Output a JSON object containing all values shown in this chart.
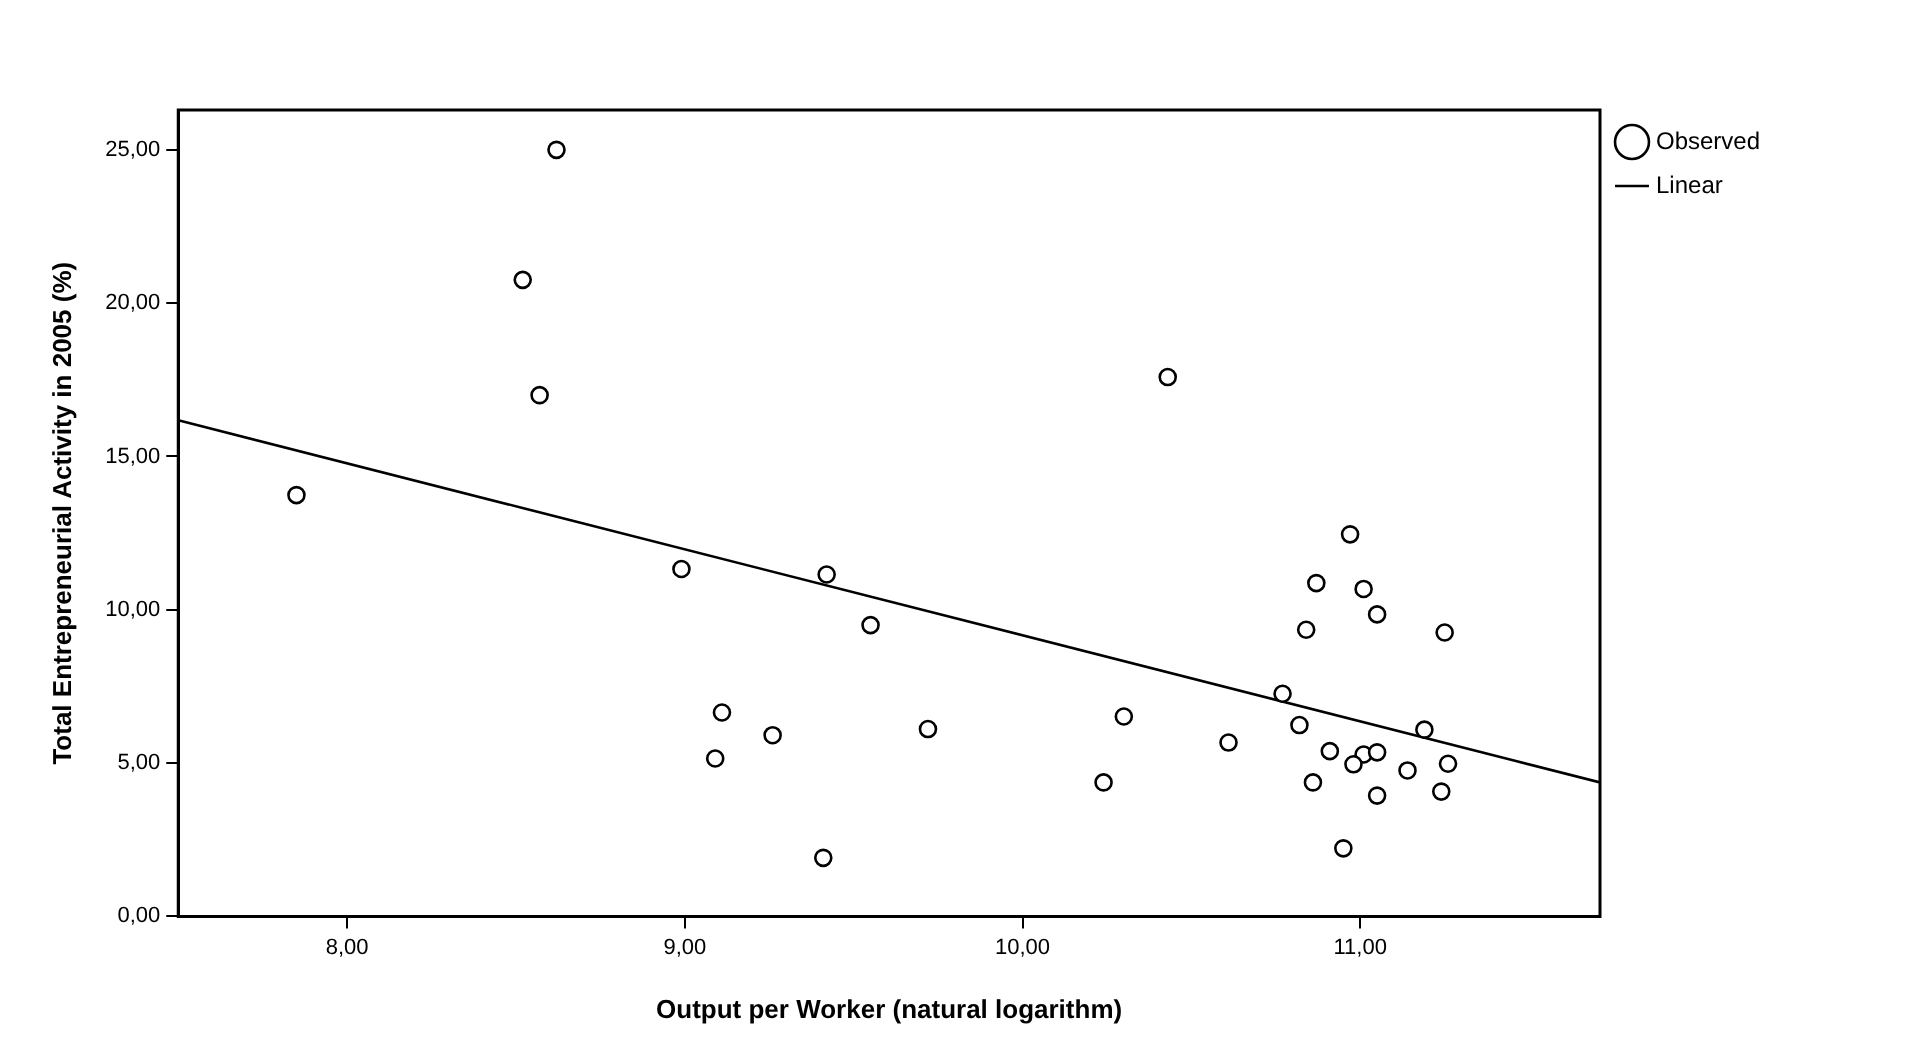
{
  "chart_data": {
    "type": "scatter",
    "xlabel": "Output per Worker (natural logarithm)",
    "ylabel": "Total Entrepreneurial Activity in 2005 (%)",
    "xlim": [
      7.5,
      11.71
    ],
    "ylim": [
      0,
      26.3
    ],
    "xticks": [
      {
        "value": 8,
        "label": "8,00"
      },
      {
        "value": 9,
        "label": "9,00"
      },
      {
        "value": 10,
        "label": "10,00"
      },
      {
        "value": 11,
        "label": "11,00"
      }
    ],
    "yticks": [
      {
        "value": 0,
        "label": "0,00"
      },
      {
        "value": 5,
        "label": "5,00"
      },
      {
        "value": 10,
        "label": "10,00"
      },
      {
        "value": 15,
        "label": "15,00"
      },
      {
        "value": 20,
        "label": "20,00"
      },
      {
        "value": 25,
        "label": "25,00"
      }
    ],
    "grid": false,
    "legend": "top right",
    "marker": "circle",
    "series": [
      {
        "name": "Observed",
        "color": "#000000",
        "x": [
          7.85,
          8.62,
          8.52,
          8.57,
          8.99,
          9.42,
          9.55,
          9.11,
          9.09,
          9.26,
          9.72,
          9.41,
          10.43,
          10.24,
          10.3,
          10.61,
          10.97,
          10.87,
          11.01,
          11.05,
          10.84,
          11.25,
          10.77,
          10.82,
          11.19,
          10.91,
          11.01,
          11.05,
          10.98,
          11.26,
          11.14,
          10.86,
          11.05,
          11.24,
          10.95
        ],
        "values": [
          13.74,
          25.0,
          20.76,
          17.0,
          11.33,
          11.15,
          9.5,
          6.65,
          5.15,
          5.91,
          6.11,
          1.91,
          17.59,
          4.37,
          6.52,
          5.67,
          12.46,
          10.87,
          10.68,
          9.85,
          9.35,
          9.26,
          7.26,
          6.24,
          6.09,
          5.39,
          5.28,
          5.35,
          4.96,
          4.98,
          4.76,
          4.37,
          3.94,
          4.07,
          2.22
        ]
      },
      {
        "name": "Linear",
        "type": "line",
        "color": "#000000",
        "marker": "none",
        "line_style": "solid",
        "x": [
          7.5,
          11.71
        ],
        "values": [
          16.18,
          4.37
        ]
      }
    ]
  }
}
